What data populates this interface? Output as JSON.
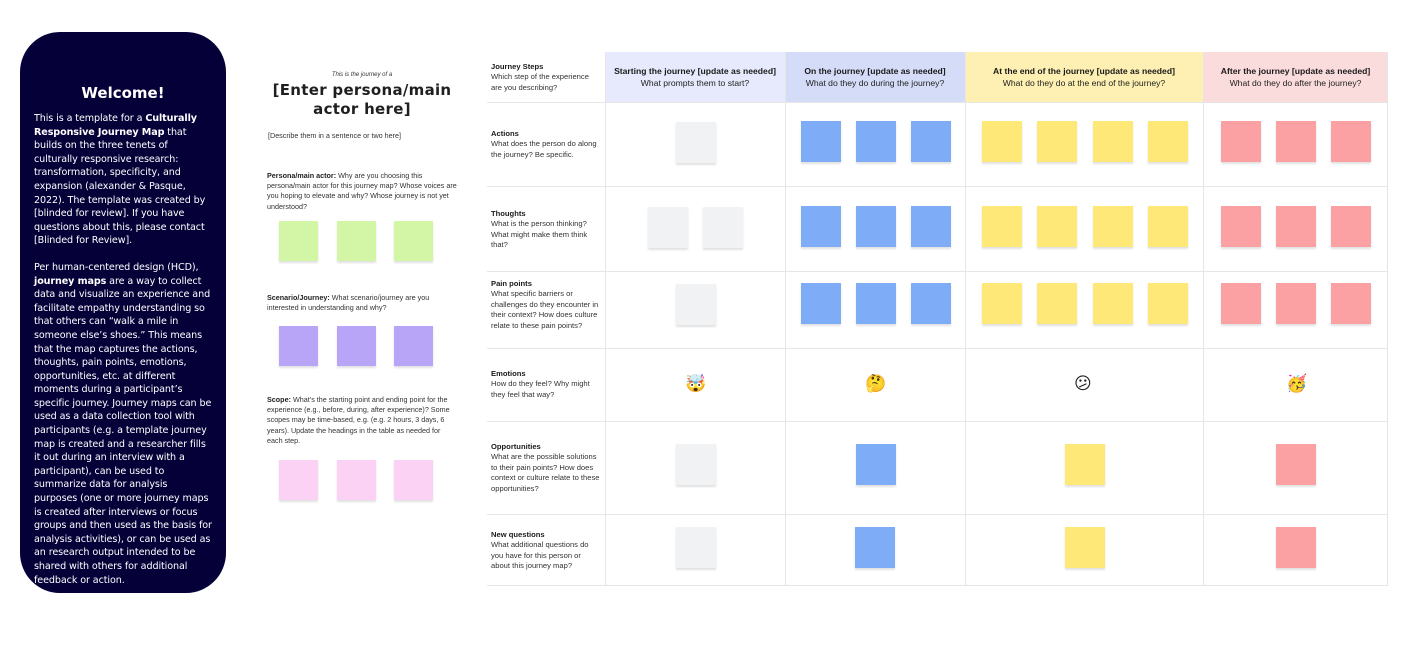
{
  "welcome": {
    "title": "Welcome!",
    "p1_a": "This is a template for a ",
    "p1_bold": "Culturally Responsive Journey Map",
    "p1_b": " that builds on the three tenets of culturally responsive research: transformation, specificity, and expansion (alexander & Pasque, 2022). The template was created by [blinded for review]. If you have questions about this, please contact [Blinded for Review].",
    "p2_a": "Per human-centered design (HCD), ",
    "p2_bold": "journey maps",
    "p2_b": " are a way to collect data and visualize an experience and facilitate empathy understanding so that others can “walk a mile in someone else’s shoes.” This means that the map captures the actions, thoughts, pain points, emotions, opportunities, etc. at different moments during a participant’s specific journey. Journey maps can be used as a data collection tool with participants (e.g. a template journey map is created and a researcher fills it out during an interview with a participant), can be used to summarize data for analysis purposes (one or more journey maps is created after interviews or focus groups and then used as the basis for analysis activities), or can be used as an research output intended to be shared with others for additional feedback or action."
  },
  "persona": {
    "eyebrow": "This is the journey of a",
    "title": "[Enter persona/main actor here]",
    "desc": "[Describe them in a sentence or two here]",
    "actor_label": "Persona/main actor:",
    "actor_text": " Why are you choosing this persona/main actor for this journey map? Whose voices are you hoping to elevate and why? Whose journey is not yet understood?",
    "scenario_label": "Scenario/Journey:",
    "scenario_text": " What scenario/journey are you interested in understanding and why?",
    "scope_label": "Scope:",
    "scope_text": " What’s the starting point and ending point for the experience (e.g., before, during, after experience)? Some scopes may be time-based, e.g. (e.g. 2 hours, 3 days, 6 years). Update the headings in the table as needed for each step."
  },
  "colors": {
    "welcome_bg": "#050038",
    "green": "#d2f5a6",
    "purple": "#b9a5f7",
    "pink": "#fbd2f3",
    "gray": "#f1f2f3",
    "blue": "#7eacf6",
    "yellow": "#fde878",
    "red": "#fca1a3",
    "head_blue": "#e6eafc",
    "head_blue2": "#d5dcf8",
    "head_yellow": "#fdf0b2",
    "head_red": "#fbdcdc"
  },
  "table": {
    "steps_label": "Journey Steps",
    "steps_desc": "Which step of the experience are you describing?",
    "columns": [
      {
        "title": "Starting the journey [update as needed]",
        "sub": "What prompts them to start?"
      },
      {
        "title": "On the journey [update as needed]",
        "sub": "What do they do during the journey?"
      },
      {
        "title": "At the end of the journey [update as needed]",
        "sub": "What do they do at the end of the journey?"
      },
      {
        "title": "After the journey [update as needed]",
        "sub": "What do they do after the journey?"
      }
    ],
    "rows": [
      {
        "title": "Actions",
        "desc": "What does the person do along the journey? Be specific."
      },
      {
        "title": "Thoughts",
        "desc": "What is the person thinking? What might make them think that?"
      },
      {
        "title": "Pain points",
        "desc": "What specific barriers or challenges do they encounter in their context? How does culture relate to these pain points?"
      },
      {
        "title": "Emotions",
        "desc": "How do they feel? Why might they feel that way?"
      },
      {
        "title": "Opportunities",
        "desc": "What are the possible solutions to their pain points? How does context or culture relate to these opportunities?"
      },
      {
        "title": "New questions",
        "desc": "What additional questions do you have for this person or about this journey map?"
      }
    ],
    "emojis": [
      "🤯",
      "🤔",
      "😕",
      "🥳"
    ]
  }
}
